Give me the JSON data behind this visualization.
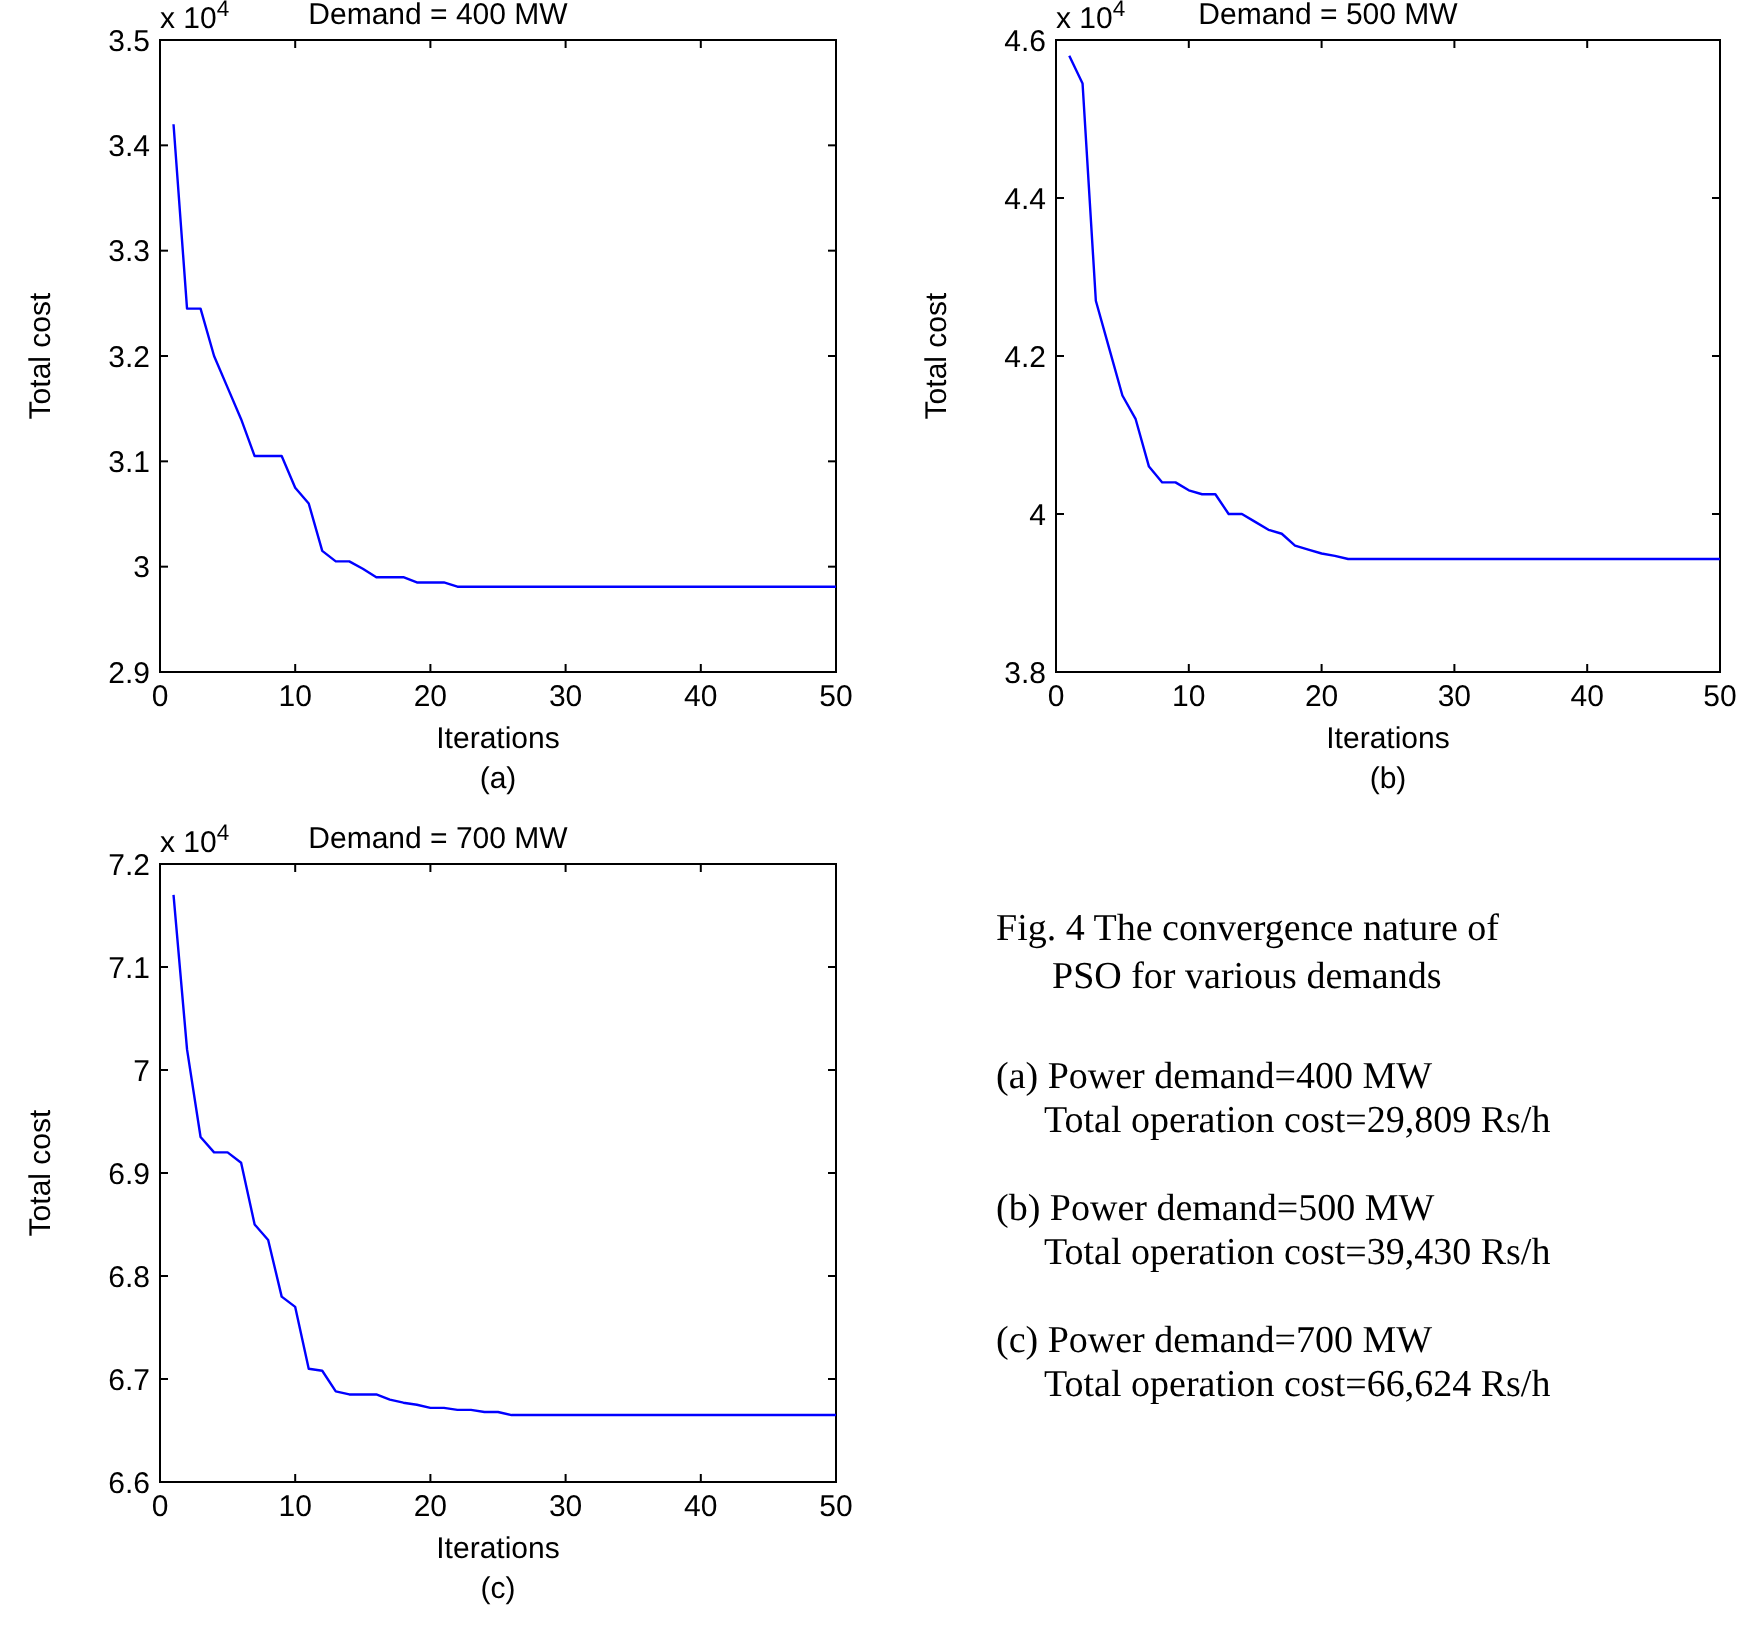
{
  "chart_data": [
    {
      "type": "line",
      "title": "Demand = 400 MW",
      "xlabel": "Iterations",
      "ylabel": "Total cost",
      "annotations": [
        "x 10$^{4}$",
        "(a)"
      ],
      "xlim": [
        0,
        50
      ],
      "xticks": [
        0,
        10,
        20,
        30,
        40,
        50
      ],
      "ylim": [
        2.9,
        3.5
      ],
      "yticks": [
        2.9,
        3,
        3.1,
        3.2,
        3.3,
        3.4,
        3.5
      ],
      "grid": false,
      "series": [
        {
          "color": "#0000ff",
          "x": [
            1,
            2,
            3,
            4,
            5,
            6,
            7,
            8,
            9,
            10,
            11,
            12,
            13,
            14,
            15,
            16,
            17,
            18,
            19,
            20,
            21,
            22,
            50
          ],
          "values": [
            3.42,
            3.245,
            3.245,
            3.2,
            3.17,
            3.14,
            3.105,
            3.105,
            3.105,
            3.075,
            3.06,
            3.015,
            3.005,
            3.005,
            2.998,
            2.99,
            2.99,
            2.99,
            2.985,
            2.985,
            2.985,
            2.981,
            2.981
          ]
        }
      ]
    },
    {
      "type": "line",
      "title": "Demand = 500 MW",
      "xlabel": "Iterations",
      "ylabel": "Total cost",
      "annotations": [
        "x 10$^{4}$",
        "(b)"
      ],
      "xlim": [
        0,
        50
      ],
      "xticks": [
        0,
        10,
        20,
        30,
        40,
        50
      ],
      "ylim": [
        3.8,
        4.6
      ],
      "yticks": [
        3.8,
        4,
        4.2,
        4.4,
        4.6
      ],
      "grid": false,
      "series": [
        {
          "color": "#0000ff",
          "x": [
            1,
            2,
            3,
            4,
            5,
            6,
            7,
            8,
            9,
            10,
            11,
            12,
            13,
            14,
            15,
            16,
            17,
            18,
            19,
            20,
            21,
            22,
            50
          ],
          "values": [
            4.58,
            4.545,
            4.27,
            4.21,
            4.15,
            4.12,
            4.06,
            4.04,
            4.04,
            4.03,
            4.025,
            4.025,
            4.0,
            4.0,
            3.99,
            3.98,
            3.975,
            3.96,
            3.955,
            3.95,
            3.947,
            3.943,
            3.943
          ]
        }
      ]
    },
    {
      "type": "line",
      "title": "Demand = 700 MW",
      "xlabel": "Iterations",
      "ylabel": "Total cost",
      "annotations": [
        "x 10$^{4}$",
        "(c)"
      ],
      "xlim": [
        0,
        50
      ],
      "xticks": [
        0,
        10,
        20,
        30,
        40,
        50
      ],
      "ylim": [
        6.6,
        7.2
      ],
      "yticks": [
        6.6,
        6.7,
        6.8,
        6.9,
        7,
        7.1,
        7.2
      ],
      "grid": false,
      "series": [
        {
          "color": "#0000ff",
          "x": [
            1,
            2,
            3,
            4,
            5,
            6,
            7,
            8,
            9,
            10,
            11,
            12,
            13,
            14,
            15,
            16,
            17,
            18,
            19,
            20,
            21,
            22,
            23,
            24,
            25,
            26,
            50
          ],
          "values": [
            7.17,
            7.02,
            6.935,
            6.92,
            6.92,
            6.91,
            6.85,
            6.835,
            6.78,
            6.77,
            6.71,
            6.708,
            6.688,
            6.685,
            6.685,
            6.685,
            6.68,
            6.677,
            6.675,
            6.672,
            6.672,
            6.67,
            6.67,
            6.668,
            6.668,
            6.665,
            6.665
          ]
        }
      ]
    },
    {
      "type": "other",
      "title": "Fig. 4 The convergence nature of\nPSO for various demands",
      "annotations": [
        "(a) Power demand=400 MW\nTotal operation cost=29,809 Rs/h",
        "(b) Power demand=500 MW\nTotal operation cost=39,430 Rs/h",
        "(c) Power demand=700 MW\nTotal operation cost=66,624 Rs/h"
      ]
    }
  ]
}
